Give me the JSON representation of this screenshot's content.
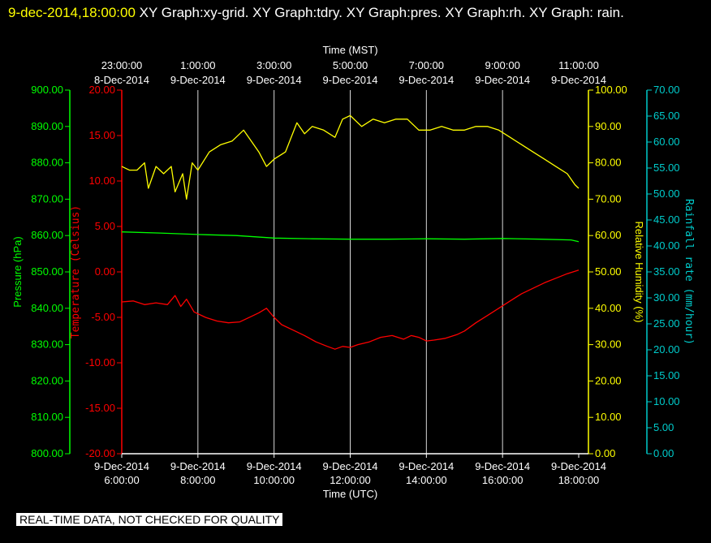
{
  "header": {
    "timestamp": "9-dec-2014,18:00:00",
    "title_rest": " XY Graph:xy-grid.  XY Graph:tdry.  XY Graph:pres.  XY Graph:rh.  XY Graph: rain."
  },
  "footer": {
    "notice": "REAL-TIME DATA, NOT CHECKED FOR QUALITY"
  },
  "chart_data": {
    "type": "line",
    "colors": {
      "temperature": "#ff0000",
      "pressure": "#00ff00",
      "humidity": "#ffff00",
      "rainfall": "#00cccc",
      "grid": "#ffffff",
      "background": "#000000"
    },
    "x_bottom": {
      "label": "Time (UTC)",
      "ticks": [
        [
          "9-Dec-2014",
          "6:00:00"
        ],
        [
          "9-Dec-2014",
          "8:00:00"
        ],
        [
          "9-Dec-2014",
          "10:00:00"
        ],
        [
          "9-Dec-2014",
          "12:00:00"
        ],
        [
          "9-Dec-2014",
          "14:00:00"
        ],
        [
          "9-Dec-2014",
          "16:00:00"
        ],
        [
          "9-Dec-2014",
          "18:00:00"
        ]
      ]
    },
    "x_top": {
      "label": "Time (MST)",
      "ticks": [
        [
          "23:00:00",
          "8-Dec-2014"
        ],
        [
          "1:00:00",
          "9-Dec-2014"
        ],
        [
          "3:00:00",
          "9-Dec-2014"
        ],
        [
          "5:00:00",
          "9-Dec-2014"
        ],
        [
          "7:00:00",
          "9-Dec-2014"
        ],
        [
          "9:00:00",
          "9-Dec-2014"
        ],
        [
          "11:00:00",
          "9-Dec-2014"
        ]
      ]
    },
    "x_range_utc_hours": [
      6,
      18
    ],
    "axes": {
      "pressure": {
        "label": "Pressure (hPa)",
        "range": [
          800,
          900
        ],
        "ticks": [
          "800.00",
          "810.00",
          "820.00",
          "830.00",
          "840.00",
          "850.00",
          "860.00",
          "870.00",
          "880.00",
          "890.00",
          "900.00"
        ]
      },
      "temperature": {
        "label": "Temperature (Celsius)",
        "range": [
          -20,
          20
        ],
        "ticks": [
          "-20.00",
          "-15.00",
          "-10.00",
          "-5.00",
          "0.00",
          "5.00",
          "10.00",
          "15.00",
          "20.00"
        ]
      },
      "humidity": {
        "label": "Relative Humidity (%)",
        "range": [
          0,
          100
        ],
        "ticks": [
          "0.00",
          "10.00",
          "20.00",
          "30.00",
          "40.00",
          "50.00",
          "60.00",
          "70.00",
          "80.00",
          "90.00",
          "100.00"
        ]
      },
      "rainfall": {
        "label": "Rainfall rate (mm/hour)",
        "range": [
          0,
          70
        ],
        "ticks": [
          "0.00",
          "5.00",
          "10.00",
          "15.00",
          "20.00",
          "25.00",
          "30.00",
          "35.00",
          "40.00",
          "45.00",
          "50.00",
          "55.00",
          "60.00",
          "65.00",
          "70.00"
        ]
      }
    },
    "series": [
      {
        "name": "tdry",
        "axis": "temperature",
        "x": [
          6.0,
          6.3,
          6.6,
          6.9,
          7.2,
          7.4,
          7.55,
          7.7,
          7.9,
          8.2,
          8.5,
          8.8,
          9.1,
          9.4,
          9.6,
          9.8,
          10.0,
          10.2,
          10.5,
          10.8,
          11.1,
          11.4,
          11.6,
          11.8,
          12.0,
          12.2,
          12.5,
          12.8,
          13.1,
          13.4,
          13.6,
          13.8,
          14.0,
          14.2,
          14.5,
          14.8,
          15.0,
          15.3,
          15.6,
          15.9,
          16.2,
          16.5,
          16.8,
          17.1,
          17.4,
          17.7,
          18.0
        ],
        "y": [
          -3.3,
          -3.2,
          -3.6,
          -3.4,
          -3.6,
          -2.6,
          -3.8,
          -3.0,
          -4.4,
          -5.0,
          -5.4,
          -5.6,
          -5.5,
          -4.9,
          -4.5,
          -4.0,
          -5.0,
          -5.8,
          -6.4,
          -7.0,
          -7.7,
          -8.2,
          -8.5,
          -8.2,
          -8.3,
          -8.0,
          -7.7,
          -7.2,
          -7.0,
          -7.4,
          -7.0,
          -7.2,
          -7.6,
          -7.5,
          -7.3,
          -6.9,
          -6.5,
          -5.6,
          -4.8,
          -4.0,
          -3.2,
          -2.4,
          -1.8,
          -1.2,
          -0.7,
          -0.2,
          0.2
        ]
      },
      {
        "name": "pres",
        "axis": "pressure",
        "x": [
          6.0,
          7.0,
          8.0,
          9.0,
          10.0,
          11.0,
          12.0,
          13.0,
          14.0,
          15.0,
          16.0,
          17.0,
          17.8,
          18.0
        ],
        "y": [
          861.0,
          860.7,
          860.3,
          860.0,
          859.3,
          859.1,
          859.0,
          859.0,
          859.1,
          859.0,
          859.2,
          859.0,
          858.8,
          858.3
        ]
      },
      {
        "name": "rh",
        "axis": "humidity",
        "x": [
          6.0,
          6.2,
          6.4,
          6.6,
          6.7,
          6.9,
          7.1,
          7.3,
          7.4,
          7.6,
          7.7,
          7.85,
          8.0,
          8.3,
          8.6,
          8.9,
          9.2,
          9.4,
          9.6,
          9.8,
          10.0,
          10.3,
          10.6,
          10.8,
          11.0,
          11.3,
          11.6,
          11.8,
          12.0,
          12.3,
          12.6,
          12.9,
          13.2,
          13.5,
          13.8,
          14.1,
          14.4,
          14.7,
          15.0,
          15.3,
          15.6,
          15.9,
          16.2,
          16.5,
          16.8,
          17.1,
          17.4,
          17.7,
          17.9,
          18.0
        ],
        "y": [
          79,
          78,
          78,
          80,
          73,
          79,
          77,
          79,
          72,
          77,
          70,
          80,
          78,
          83,
          85,
          86,
          89,
          86,
          83,
          79,
          81,
          83,
          91,
          88,
          90,
          89,
          87,
          92,
          93,
          90,
          92,
          91,
          92,
          92,
          89,
          89,
          90,
          89,
          89,
          90,
          90,
          89,
          87,
          85,
          83,
          81,
          79,
          77,
          74,
          73
        ]
      },
      {
        "name": "rain",
        "axis": "rainfall",
        "x": [],
        "y": []
      }
    ]
  }
}
